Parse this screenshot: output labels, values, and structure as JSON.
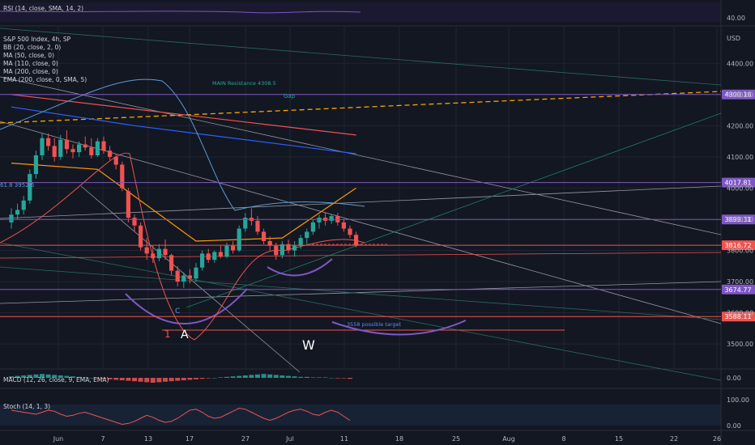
{
  "header": {
    "symbol_line": "S&P 500 Index, 4h, SP",
    "currency": "USD",
    "indicators": [
      "BB (20, close, 2, 0)",
      "MA (50, close, 0)",
      "MA (110, close, 0)",
      "MA (200, close, 0)",
      "EMA (200, close, 0, SMA, 5)"
    ]
  },
  "rsi_pane": {
    "label": "RSI (14, close, SMA, 14, 2)",
    "ticks": [
      "40.00"
    ]
  },
  "macd_pane": {
    "label": "MACD (12, 26, close, 9, EMA, EMA)",
    "ticks": [
      "0.00"
    ]
  },
  "stoch_pane": {
    "label": "Stoch (14, 1, 3)",
    "ticks": [
      "100.00",
      "0.00"
    ]
  },
  "annotations": {
    "main_resistance": "MAIN Resistance 4308.5",
    "gap": "Gap",
    "target": "3558 possible target",
    "wave_1": "1",
    "wave_a": "A",
    "wave_c": "C",
    "wave_w": "W",
    "fib_label": "61.8 3952.6"
  },
  "colors": {
    "background": "#131722",
    "up_candle": "#26a69a",
    "down_candle": "#ef5350",
    "resistance_line": "#7e57c2",
    "dashed_trend": "#f7a600",
    "bb": "#5b9bd5"
  },
  "chart_data": {
    "type": "candlestick",
    "title": "S&P 500 Index, 4h, SP",
    "ylim": [
      3420,
      4520
    ],
    "y_ticks": [
      3500,
      3600,
      3700,
      3800,
      3900,
      4000,
      4100,
      4200,
      4300,
      4400
    ],
    "y_tick_labels": [
      "3500.00",
      "3600.00",
      "3700.00",
      "3800.00",
      "3900.00",
      "4000.00",
      "4100.00",
      "4200.00",
      "4300.00",
      "4400.00"
    ],
    "x_tick_labels": [
      "Jun",
      "7",
      "13",
      "17",
      "27",
      "Jul",
      "11",
      "18",
      "25",
      "Aug",
      "8",
      "15",
      "22",
      "26"
    ],
    "price_levels": [
      {
        "value": 4300.16,
        "label": "4300.16",
        "color": "#7e57c2"
      },
      {
        "value": 4017.81,
        "label": "4017.81",
        "color": "#7e57c2"
      },
      {
        "value": 3899.31,
        "label": "3899.31",
        "color": "#7e57c2"
      },
      {
        "value": 3816.72,
        "label": "3816.72",
        "color": "#ef5350"
      },
      {
        "value": 3674.77,
        "label": "3674.77",
        "color": "#7e57c2"
      },
      {
        "value": 3588.11,
        "label": "3588.11",
        "color": "#ef5350"
      }
    ],
    "candles": [
      {
        "o": 3890,
        "h": 3935,
        "l": 3870,
        "c": 3915
      },
      {
        "o": 3915,
        "h": 3950,
        "l": 3900,
        "c": 3930
      },
      {
        "o": 3930,
        "h": 3975,
        "l": 3915,
        "c": 3960
      },
      {
        "o": 3960,
        "h": 4060,
        "l": 3950,
        "c": 4045
      },
      {
        "o": 4045,
        "h": 4120,
        "l": 4030,
        "c": 4105
      },
      {
        "o": 4105,
        "h": 4175,
        "l": 4090,
        "c": 4160
      },
      {
        "o": 4160,
        "h": 4175,
        "l": 4120,
        "c": 4135
      },
      {
        "o": 4135,
        "h": 4160,
        "l": 4085,
        "c": 4100
      },
      {
        "o": 4100,
        "h": 4170,
        "l": 4090,
        "c": 4155
      },
      {
        "o": 4155,
        "h": 4185,
        "l": 4110,
        "c": 4125
      },
      {
        "o": 4125,
        "h": 4140,
        "l": 4095,
        "c": 4115
      },
      {
        "o": 4115,
        "h": 4150,
        "l": 4100,
        "c": 4140
      },
      {
        "o": 4140,
        "h": 4165,
        "l": 4120,
        "c": 4130
      },
      {
        "o": 4130,
        "h": 4160,
        "l": 4095,
        "c": 4105
      },
      {
        "o": 4105,
        "h": 4160,
        "l": 4100,
        "c": 4150
      },
      {
        "o": 4150,
        "h": 4165,
        "l": 4110,
        "c": 4120
      },
      {
        "o": 4120,
        "h": 4135,
        "l": 4090,
        "c": 4100
      },
      {
        "o": 4100,
        "h": 4110,
        "l": 4060,
        "c": 4075
      },
      {
        "o": 4075,
        "h": 4085,
        "l": 3990,
        "c": 4000
      },
      {
        "o": 3990,
        "h": 4000,
        "l": 3890,
        "c": 3905
      },
      {
        "o": 3905,
        "h": 3915,
        "l": 3860,
        "c": 3880
      },
      {
        "o": 3880,
        "h": 3890,
        "l": 3800,
        "c": 3810
      },
      {
        "o": 3810,
        "h": 3840,
        "l": 3770,
        "c": 3790
      },
      {
        "o": 3790,
        "h": 3815,
        "l": 3760,
        "c": 3775
      },
      {
        "o": 3775,
        "h": 3820,
        "l": 3765,
        "c": 3805
      },
      {
        "o": 3805,
        "h": 3835,
        "l": 3770,
        "c": 3785
      },
      {
        "o": 3785,
        "h": 3790,
        "l": 3720,
        "c": 3735
      },
      {
        "o": 3735,
        "h": 3750,
        "l": 3685,
        "c": 3700
      },
      {
        "o": 3700,
        "h": 3730,
        "l": 3680,
        "c": 3720
      },
      {
        "o": 3720,
        "h": 3740,
        "l": 3695,
        "c": 3710
      },
      {
        "o": 3710,
        "h": 3760,
        "l": 3700,
        "c": 3745
      },
      {
        "o": 3745,
        "h": 3800,
        "l": 3735,
        "c": 3790
      },
      {
        "o": 3790,
        "h": 3805,
        "l": 3760,
        "c": 3770
      },
      {
        "o": 3770,
        "h": 3800,
        "l": 3760,
        "c": 3795
      },
      {
        "o": 3795,
        "h": 3815,
        "l": 3775,
        "c": 3780
      },
      {
        "o": 3780,
        "h": 3825,
        "l": 3775,
        "c": 3815
      },
      {
        "o": 3815,
        "h": 3830,
        "l": 3790,
        "c": 3800
      },
      {
        "o": 3800,
        "h": 3880,
        "l": 3795,
        "c": 3870
      },
      {
        "o": 3870,
        "h": 3920,
        "l": 3860,
        "c": 3905
      },
      {
        "o": 3905,
        "h": 3935,
        "l": 3880,
        "c": 3895
      },
      {
        "o": 3895,
        "h": 3910,
        "l": 3850,
        "c": 3860
      },
      {
        "o": 3860,
        "h": 3870,
        "l": 3820,
        "c": 3830
      },
      {
        "o": 3830,
        "h": 3845,
        "l": 3800,
        "c": 3815
      },
      {
        "o": 3815,
        "h": 3825,
        "l": 3770,
        "c": 3785
      },
      {
        "o": 3785,
        "h": 3830,
        "l": 3775,
        "c": 3820
      },
      {
        "o": 3820,
        "h": 3835,
        "l": 3790,
        "c": 3800
      },
      {
        "o": 3800,
        "h": 3830,
        "l": 3780,
        "c": 3815
      },
      {
        "o": 3815,
        "h": 3850,
        "l": 3805,
        "c": 3840
      },
      {
        "o": 3840,
        "h": 3870,
        "l": 3820,
        "c": 3860
      },
      {
        "o": 3860,
        "h": 3900,
        "l": 3850,
        "c": 3890
      },
      {
        "o": 3890,
        "h": 3915,
        "l": 3870,
        "c": 3905
      },
      {
        "o": 3905,
        "h": 3920,
        "l": 3880,
        "c": 3895
      },
      {
        "o": 3895,
        "h": 3915,
        "l": 3885,
        "c": 3910
      },
      {
        "o": 3910,
        "h": 3920,
        "l": 3880,
        "c": 3890
      },
      {
        "o": 3890,
        "h": 3900,
        "l": 3860,
        "c": 3870
      },
      {
        "o": 3870,
        "h": 3880,
        "l": 3840,
        "c": 3850
      },
      {
        "o": 3850,
        "h": 3860,
        "l": 3810,
        "c": 3817
      }
    ],
    "overlays": [
      {
        "name": "red-ma",
        "color": "#ef5350",
        "points": [
          [
            0,
            4300
          ],
          [
            56,
            4170
          ]
        ]
      },
      {
        "name": "blue-ma",
        "color": "#2962ff",
        "points": [
          [
            0,
            4260
          ],
          [
            20,
            4200
          ],
          [
            56,
            4110
          ]
        ]
      },
      {
        "name": "orange-ema",
        "color": "#ff9800",
        "points": [
          [
            0,
            4080
          ],
          [
            14,
            4060
          ],
          [
            30,
            3830
          ],
          [
            44,
            3840
          ],
          [
            56,
            4000
          ]
        ]
      }
    ],
    "macd_hist": [
      3,
      4,
      5,
      6,
      7,
      8,
      7,
      6,
      5,
      4,
      3,
      2,
      1,
      0,
      -1,
      -2,
      -3,
      -4,
      -5,
      -6,
      -7,
      -8,
      -9,
      -10,
      -9,
      -8,
      -7,
      -6,
      -5,
      -4,
      -3,
      -2,
      -1,
      0,
      1,
      2,
      3,
      4,
      5,
      6,
      7,
      8,
      7,
      6,
      5,
      4,
      3,
      2,
      2,
      1,
      1,
      1,
      0,
      -1,
      -1,
      -2
    ],
    "stoch": [
      80,
      75,
      70,
      65,
      60,
      70,
      80,
      75,
      60,
      50,
      55,
      65,
      70,
      60,
      50,
      40,
      30,
      20,
      10,
      15,
      25,
      40,
      55,
      45,
      30,
      20,
      25,
      40,
      60,
      80,
      85,
      70,
      50,
      40,
      45,
      60,
      75,
      90,
      85,
      70,
      55,
      40,
      30,
      40,
      55,
      70,
      80,
      85,
      75,
      60,
      55,
      70,
      80,
      70,
      50,
      30
    ]
  }
}
